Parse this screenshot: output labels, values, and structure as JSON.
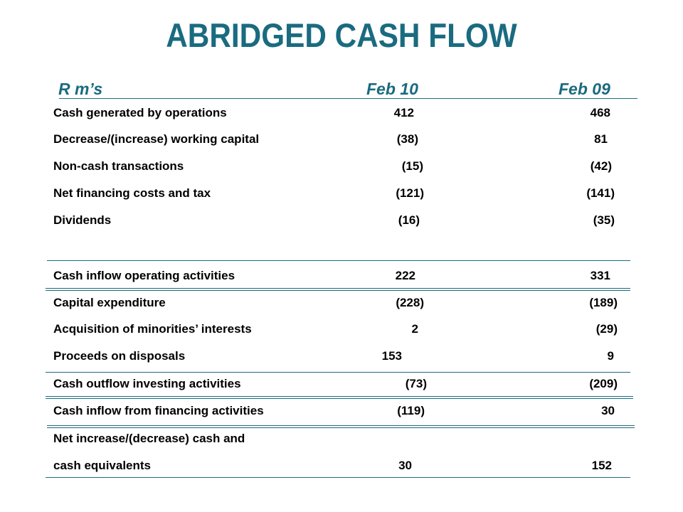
{
  "title": "ABRIDGED CASH FLOW",
  "header": {
    "unit_label": "R m’s",
    "col1": "Feb 10",
    "col2": "Feb 09"
  },
  "rows": [
    {
      "label": "Cash generated by operations",
      "feb10": "412",
      "feb09": "468"
    },
    {
      "label": "Decrease/(increase) working capital",
      "feb10": "(38)",
      "feb09": "81"
    },
    {
      "label": "Non-cash transactions",
      "feb10": "(15)",
      "feb09": "(42)"
    },
    {
      "label": "Net financing costs and tax",
      "feb10": "(121)",
      "feb09": "(141)"
    },
    {
      "label": "Dividends",
      "feb10": "(16)",
      "feb09": "(35)"
    },
    {
      "label": "Cash inflow operating activities",
      "feb10": "222",
      "feb09": "331"
    },
    {
      "label": "Capital expenditure",
      "feb10": "(228)",
      "feb09": "(189)"
    },
    {
      "label": "Acquisition of minorities’ interests",
      "feb10": "2",
      "feb09": "(29)"
    },
    {
      "label": "Proceeds on disposals",
      "feb10": "153",
      "feb09": "9"
    },
    {
      "label": "Cash outflow investing activities",
      "feb10": "(73)",
      "feb09": "(209)"
    },
    {
      "label": "Cash inflow from financing activities",
      "feb10": "(119)",
      "feb09": "30"
    },
    {
      "label": "Net increase/(decrease) cash and",
      "feb10": "",
      "feb09": ""
    },
    {
      "label": "cash equivalents",
      "feb10": "30",
      "feb09": "152"
    }
  ],
  "colors": {
    "accent": "#1a6b7f",
    "text": "#000000",
    "background": "#ffffff"
  }
}
